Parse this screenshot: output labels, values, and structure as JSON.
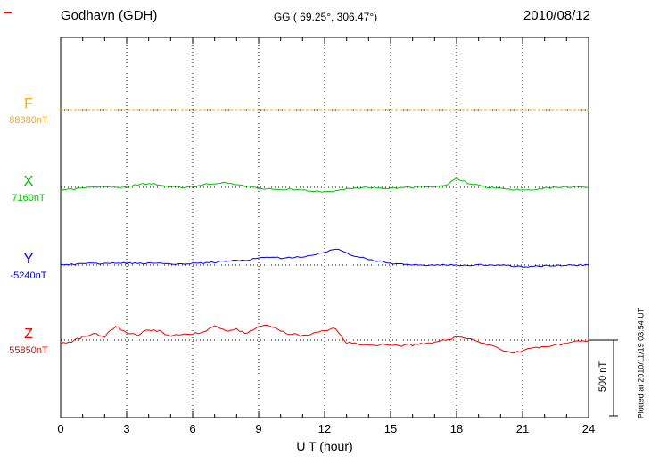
{
  "header": {
    "station": "Godhavn (GDH)",
    "coords": "GG ( 69.25°, 306.47°)",
    "date": "2010/08/12"
  },
  "chart_data": {
    "type": "line",
    "title": "Godhavn (GDH)",
    "subtitle": "GG ( 69.25°, 306.47°)",
    "date": "2010/08/12",
    "xlabel": "U T (hour)",
    "x_range": [
      0,
      24
    ],
    "x_ticks": [
      0,
      3,
      6,
      9,
      12,
      15,
      18,
      21,
      24
    ],
    "x_start": 0,
    "x_step": 0.5,
    "grid": "vertical-dotted",
    "scale_bar": {
      "label": "500 nT",
      "nT": 500
    },
    "plotted_at": "Plotted at 2010/11/19 03:54 UT",
    "series": [
      {
        "name": "F",
        "baseline_label": "88880nT",
        "baseline_nT": 88880,
        "color": "#ffa500",
        "values": [
          0,
          0,
          0,
          0,
          0,
          0,
          0,
          0,
          0,
          0,
          0,
          0,
          0,
          0,
          0,
          0,
          0,
          0,
          0,
          0,
          0,
          0,
          0,
          0,
          0,
          0,
          0,
          0,
          0,
          0,
          0,
          0,
          0,
          0,
          0,
          0,
          0,
          0,
          0,
          0,
          0,
          0,
          0,
          0,
          0,
          0,
          0,
          0,
          0
        ]
      },
      {
        "name": "X",
        "baseline_label": "7160nT",
        "baseline_nT": 7160,
        "color": "#00c000",
        "values": [
          -18,
          -12,
          -6,
          0,
          6,
          0,
          6,
          18,
          24,
          18,
          6,
          0,
          6,
          18,
          24,
          29,
          18,
          6,
          -6,
          -12,
          -18,
          -12,
          -18,
          -24,
          -29,
          -24,
          -12,
          -6,
          0,
          -6,
          -6,
          0,
          0,
          6,
          0,
          12,
          59,
          29,
          12,
          0,
          -6,
          -12,
          -18,
          -12,
          -6,
          0,
          0,
          6,
          0
        ]
      },
      {
        "name": "Y",
        "baseline_label": "-5240nT",
        "baseline_nT": -5240,
        "color": "#0000ee",
        "values": [
          0,
          5,
          8,
          10,
          12,
          15,
          12,
          10,
          14,
          12,
          8,
          6,
          10,
          14,
          18,
          24,
          30,
          35,
          45,
          50,
          47,
          50,
          55,
          65,
          85,
          105,
          80,
          55,
          38,
          24,
          12,
          5,
          0,
          -2,
          0,
          3,
          0,
          -3,
          0,
          2,
          0,
          -6,
          -12,
          -9,
          -5,
          -3,
          -2,
          0,
          0
        ]
      },
      {
        "name": "Z",
        "baseline_label": "55850nT",
        "baseline_nT": 55850,
        "color": "#ee0000",
        "values": [
          -25,
          -10,
          20,
          45,
          20,
          95,
          50,
          30,
          70,
          60,
          25,
          35,
          40,
          55,
          100,
          55,
          70,
          45,
          85,
          95,
          55,
          40,
          30,
          45,
          65,
          75,
          -15,
          -30,
          -35,
          -30,
          -35,
          -38,
          -32,
          -25,
          -12,
          0,
          15,
          8,
          -12,
          -35,
          -60,
          -85,
          -70,
          -55,
          -45,
          -35,
          -25,
          -12,
          -5
        ]
      }
    ]
  }
}
